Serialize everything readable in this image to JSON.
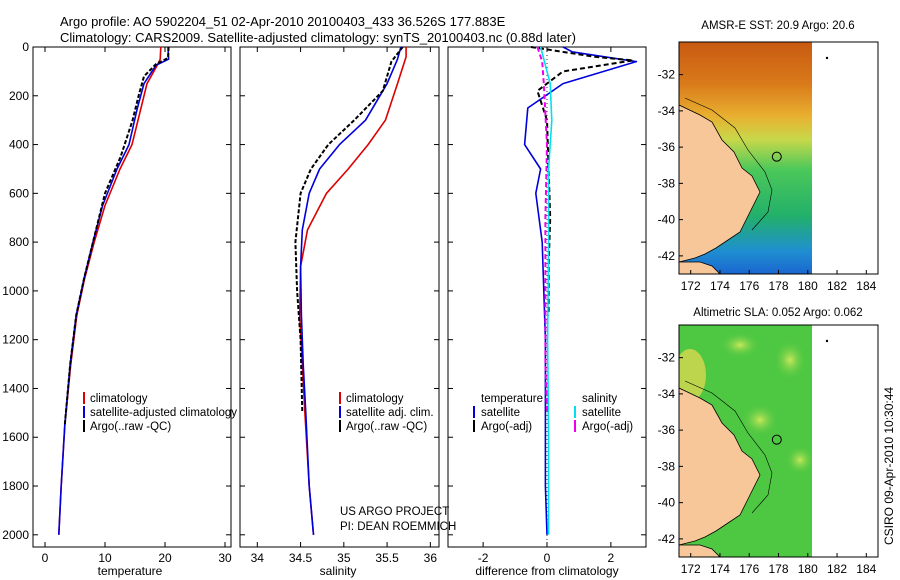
{
  "header": {
    "line1": "Argo profile: AO 5902204_51 02-Apr-2010 20100403_433 36.526S 177.883E",
    "line2": "Climatology: CARS2009. Satellite-adjusted climatology: synTS_20100403.nc (0.88d later)"
  },
  "colors": {
    "climatology": "#dd0000",
    "satellite": "#0000dd",
    "argo": "#000000",
    "satellite_salinity": "#00e0f0",
    "argo_salinity": "#ee00ee"
  },
  "footer": {
    "project": "US ARGO PROJECT",
    "pi": "PI: DEAN ROEMMICH",
    "stamp": "CSIRO 09-Apr-2010 10:30:44"
  },
  "chart_data": [
    {
      "type": "line",
      "name": "temperature-profile",
      "xlabel": "temperature",
      "ylabel": "",
      "xlim": [
        -2,
        31
      ],
      "ylim": [
        2050,
        0
      ],
      "xticks": [
        "0",
        "10",
        "20",
        "30"
      ],
      "yticks": [
        "0",
        "200",
        "400",
        "600",
        "800",
        "1000",
        "1200",
        "1400",
        "1600",
        "1800",
        "2000"
      ],
      "legend": [
        "climatology",
        "satellite-adjusted climatology",
        "Argo(..raw -QC)"
      ],
      "series": [
        {
          "name": "climatology",
          "color": "#dd0000",
          "dash": "",
          "x": [
            19.3,
            19.2,
            18.7,
            17.0,
            16.0,
            14.5,
            12.5,
            10.0,
            8.2,
            6.6,
            5.3,
            4.3,
            3.3,
            2.7,
            2.4,
            2.3
          ],
          "y": [
            0,
            50,
            75,
            150,
            250,
            400,
            500,
            650,
            800,
            950,
            1100,
            1300,
            1550,
            1800,
            1950,
            2000
          ]
        },
        {
          "name": "satellite-adjusted climatology",
          "color": "#0000dd",
          "dash": "",
          "x": [
            20.5,
            20.6,
            18.5,
            16.5,
            15.4,
            14.0,
            12.0,
            9.6,
            8.0,
            6.5,
            5.2,
            4.2,
            3.3,
            2.7,
            2.4,
            2.3
          ],
          "y": [
            0,
            50,
            75,
            150,
            250,
            400,
            500,
            650,
            800,
            950,
            1100,
            1300,
            1550,
            1800,
            1950,
            2000
          ]
        },
        {
          "name": "Argo(..raw -QC)",
          "color": "#000000",
          "dash": "4,2",
          "x": [
            20.6,
            20.5,
            18.5,
            16.5,
            15.6,
            14.6,
            12.6,
            10.0,
            8.0,
            6.5,
            5.2,
            4.2,
            3.3
          ],
          "y": [
            0,
            45,
            70,
            120,
            200,
            300,
            450,
            600,
            800,
            950,
            1100,
            1300,
            1550
          ]
        }
      ]
    },
    {
      "type": "line",
      "name": "salinity-profile",
      "xlabel": "salinity",
      "ylabel": "",
      "xlim": [
        33.8,
        36.1
      ],
      "ylim": [
        2050,
        0
      ],
      "xticks": [
        "34",
        "34.5",
        "35",
        "35.5",
        "36"
      ],
      "legend": [
        "climatology",
        "satellite adj. clim.",
        "Argo(..raw -QC)"
      ],
      "series": [
        {
          "name": "climatology",
          "color": "#dd0000",
          "dash": "",
          "x": [
            35.72,
            35.72,
            35.62,
            35.48,
            35.28,
            35.05,
            34.8,
            34.58,
            34.5,
            34.49,
            34.52,
            34.55,
            34.6,
            34.65
          ],
          "y": [
            0,
            40,
            150,
            300,
            400,
            500,
            600,
            750,
            900,
            1100,
            1300,
            1500,
            1800,
            2000
          ]
        },
        {
          "name": "satellite adj. clim.",
          "color": "#0000dd",
          "dash": "",
          "x": [
            35.66,
            35.62,
            35.5,
            35.25,
            34.95,
            34.72,
            34.6,
            34.52,
            34.5,
            34.51,
            34.53,
            34.56,
            34.6,
            34.65
          ],
          "y": [
            0,
            50,
            150,
            300,
            400,
            500,
            600,
            750,
            900,
            1100,
            1300,
            1500,
            1800,
            2000
          ]
        },
        {
          "name": "Argo(..raw -QC)",
          "color": "#000000",
          "dash": "4,2",
          "x": [
            35.68,
            35.55,
            35.45,
            35.12,
            34.82,
            34.62,
            34.5,
            34.44,
            34.46,
            34.5,
            34.52
          ],
          "y": [
            0,
            60,
            180,
            300,
            400,
            500,
            600,
            800,
            1000,
            1200,
            1500
          ]
        }
      ]
    },
    {
      "type": "line",
      "name": "difference-profile",
      "xlabel": "difference from climatology",
      "ylabel": "",
      "xlim": [
        -3.1,
        3.1
      ],
      "ylim": [
        2050,
        0
      ],
      "xticks": [
        "-2",
        "0",
        "2"
      ],
      "legend_title_left": "temperature",
      "legend_title_right": "salinity",
      "legend": [
        "satellite",
        "Argo(-adj)",
        "satellite",
        "Argo(-adj)"
      ],
      "zero_line": 0,
      "series": [
        {
          "name": "temperature satellite",
          "color": "#0000dd",
          "dash": "",
          "x": [
            0.5,
            0.8,
            2.8,
            0.5,
            -0.6,
            -0.7,
            -0.2,
            -0.35,
            -0.15,
            -0.1,
            -0.05,
            -0.05,
            -0.05,
            0
          ],
          "y": [
            0,
            20,
            60,
            150,
            250,
            400,
            500,
            600,
            800,
            1000,
            1200,
            1500,
            1800,
            2000
          ]
        },
        {
          "name": "temperature Argo(-adj)",
          "color": "#000000",
          "dash": "5,3",
          "x": [
            -0.5,
            1.5,
            2.7,
            0.5,
            -0.3,
            0,
            0.05,
            0.1,
            0.05,
            0.05
          ],
          "y": [
            0,
            40,
            55,
            100,
            180,
            300,
            500,
            700,
            900,
            1100
          ]
        },
        {
          "name": "salinity satellite",
          "color": "#00e0f0",
          "dash": "",
          "x": [
            -0.2,
            -0.1,
            0.1,
            0.15,
            0.05,
            0.05,
            0.02,
            0.05,
            0.05
          ],
          "y": [
            0,
            50,
            150,
            300,
            500,
            800,
            1200,
            1600,
            2000
          ]
        },
        {
          "name": "salinity Argo(-adj)",
          "color": "#ee00ee",
          "dash": "5,3",
          "x": [
            -0.3,
            -0.15,
            -0.1,
            0,
            -0.05,
            -0.05,
            -0.05,
            0
          ],
          "y": [
            0,
            60,
            150,
            400,
            700,
            1000,
            1300,
            1500
          ]
        }
      ]
    },
    {
      "type": "heatmap",
      "name": "sst-map",
      "title": "AMSR-E SST: 20.9  Argo: 20.6",
      "xticks": [
        "172",
        "174",
        "176",
        "178",
        "180",
        "182",
        "184"
      ],
      "yticks": [
        "-32",
        "-34",
        "-36",
        "-38",
        "-40",
        "-42"
      ],
      "xlim": [
        171.2,
        184.8
      ],
      "ylim": [
        -43,
        -30.2
      ],
      "float_position": [
        177.883,
        -36.526
      ]
    },
    {
      "type": "heatmap",
      "name": "sla-map",
      "title": "Altimetric SLA: 0.052  Argo: 0.062",
      "xticks": [
        "172",
        "174",
        "176",
        "178",
        "180",
        "182",
        "184"
      ],
      "yticks": [
        "-32",
        "-34",
        "-36",
        "-38",
        "-40",
        "-42"
      ],
      "xlim": [
        171.2,
        184.8
      ],
      "ylim": [
        -43,
        -30.2
      ],
      "float_position": [
        177.883,
        -36.526
      ]
    }
  ]
}
